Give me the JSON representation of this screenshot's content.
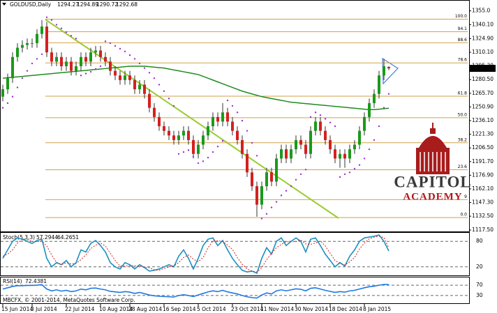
{
  "chart_data": [
    {
      "type": "candlestick",
      "title": "GOLDUSD,Daily",
      "categories": [
        "15 Jun 2014",
        null,
        null,
        null,
        null,
        null,
        "3 Jul 2014",
        null,
        null,
        null,
        null,
        null,
        null,
        "22 Jul 2014",
        null,
        null,
        null,
        null,
        null,
        null,
        "10 Aug 2014",
        null,
        null,
        null,
        null,
        null,
        "28 Aug 2014",
        null,
        null,
        null,
        null,
        null,
        null,
        "16 Sep 2014",
        null,
        null,
        null,
        null,
        null,
        null,
        "5 Oct 2014",
        null,
        null,
        null,
        null,
        null,
        null,
        "23 Oct 2014",
        null,
        null,
        null,
        null,
        null,
        "11 Nov 2014",
        null,
        null,
        null,
        null,
        null,
        null,
        "30 Nov 2014",
        null,
        null,
        null,
        null,
        null,
        null,
        "18 Dec 2014",
        null,
        null,
        null,
        null,
        null,
        null,
        "8 Jan 2015",
        null,
        null,
        null,
        null,
        null
      ],
      "open": [
        1262,
        1270,
        1282,
        1305,
        1315,
        1318,
        1320,
        1320,
        1330,
        1338,
        1310,
        1300,
        1305,
        1295,
        1300,
        1290,
        1295,
        1305,
        1300,
        1310,
        1312,
        1305,
        1300,
        1290,
        1285,
        1280,
        1285,
        1280,
        1270,
        1275,
        1265,
        1250,
        1240,
        1230,
        1225,
        1220,
        1215,
        1220,
        1225,
        1215,
        1200,
        1210,
        1220,
        1230,
        1240,
        1235,
        1245,
        1235,
        1225,
        1215,
        1200,
        1180,
        1165,
        1145,
        1165,
        1180,
        1170,
        1195,
        1205,
        1195,
        1205,
        1215,
        1210,
        1200,
        1225,
        1235,
        1225,
        1215,
        1205,
        1195,
        1200,
        1195,
        1205,
        1210,
        1225,
        1240,
        1255,
        1265,
        1285,
        1294.27
      ],
      "high": [
        1275,
        1287,
        1310,
        1320,
        1323,
        1325,
        1325,
        1335,
        1345,
        1343,
        1315,
        1310,
        1310,
        1305,
        1305,
        1300,
        1310,
        1310,
        1315,
        1317,
        1317,
        1310,
        1305,
        1295,
        1290,
        1290,
        1290,
        1285,
        1280,
        1280,
        1270,
        1255,
        1245,
        1235,
        1230,
        1225,
        1225,
        1230,
        1230,
        1220,
        1215,
        1225,
        1235,
        1245,
        1245,
        1255,
        1250,
        1240,
        1230,
        1220,
        1205,
        1185,
        1170,
        1170,
        1185,
        1185,
        1200,
        1210,
        1210,
        1210,
        1220,
        1220,
        1215,
        1230,
        1240,
        1240,
        1230,
        1220,
        1210,
        1205,
        1205,
        1210,
        1215,
        1230,
        1245,
        1260,
        1270,
        1290,
        1303,
        1294.89
      ],
      "low": [
        1257,
        1265,
        1277,
        1300,
        1310,
        1313,
        1315,
        1315,
        1325,
        1305,
        1295,
        1295,
        1290,
        1290,
        1285,
        1285,
        1290,
        1295,
        1295,
        1305,
        1300,
        1295,
        1285,
        1280,
        1275,
        1275,
        1275,
        1265,
        1265,
        1260,
        1245,
        1235,
        1225,
        1220,
        1215,
        1210,
        1210,
        1215,
        1210,
        1195,
        1195,
        1205,
        1215,
        1225,
        1230,
        1230,
        1230,
        1220,
        1210,
        1195,
        1175,
        1160,
        1132,
        1140,
        1160,
        1165,
        1165,
        1190,
        1190,
        1190,
        1200,
        1205,
        1195,
        1195,
        1220,
        1220,
        1210,
        1200,
        1190,
        1185,
        1185,
        1190,
        1200,
        1205,
        1220,
        1235,
        1250,
        1260,
        1280,
        1290.72
      ],
      "close": [
        1270,
        1282,
        1305,
        1315,
        1318,
        1320,
        1320,
        1330,
        1338,
        1310,
        1300,
        1305,
        1295,
        1300,
        1290,
        1295,
        1305,
        1300,
        1310,
        1312,
        1305,
        1300,
        1290,
        1285,
        1280,
        1285,
        1280,
        1270,
        1275,
        1265,
        1250,
        1240,
        1230,
        1225,
        1220,
        1215,
        1220,
        1225,
        1215,
        1200,
        1210,
        1220,
        1230,
        1240,
        1235,
        1245,
        1235,
        1225,
        1215,
        1200,
        1180,
        1165,
        1145,
        1165,
        1180,
        1170,
        1195,
        1205,
        1195,
        1205,
        1215,
        1210,
        1200,
        1225,
        1235,
        1225,
        1215,
        1205,
        1195,
        1200,
        1195,
        1205,
        1210,
        1225,
        1240,
        1255,
        1265,
        1285,
        1295,
        1292.68
      ],
      "colors": {
        "up": "#1a9a1a",
        "down": "#d42020",
        "wick": "#333333",
        "last_price_box": "#000000"
      },
      "sma": {
        "color": "#1e8c1e",
        "values": [
          1282,
          1282.5,
          1283,
          1283.5,
          1284,
          1284.5,
          1285,
          1285.5,
          1286,
          1286.5,
          1287,
          1287.5,
          1288,
          1288.5,
          1289,
          1289.5,
          1290,
          1290.5,
          1291,
          1291.5,
          1292,
          1292.5,
          1293,
          1293.5,
          1294,
          1294.5,
          1295,
          1295,
          1295,
          1295,
          1294.5,
          1294,
          1293.5,
          1293,
          1292,
          1291,
          1290,
          1289,
          1288,
          1287,
          1286,
          1284,
          1282,
          1280,
          1278,
          1276,
          1274,
          1272,
          1270,
          1268,
          1266.5,
          1265,
          1263.5,
          1262,
          1261,
          1260,
          1259,
          1258,
          1257,
          1256,
          1255.5,
          1255,
          1254.5,
          1254,
          1253.5,
          1253,
          1252.5,
          1252,
          1251.5,
          1251,
          1250.5,
          1250,
          1249.5,
          1249,
          1248.5,
          1248,
          1248,
          1248.5,
          1249,
          1249.5
        ]
      },
      "sar": {
        "color": "#9b30d0",
        "values": [
          1250,
          1255,
          1262,
          1272,
          1282,
          1290,
          1298,
          1303,
          1308,
          1348,
          1345,
          1340,
          1336,
          1332,
          1328,
          1325,
          1285,
          1287,
          1289,
          1292,
          1295,
          1322,
          1320,
          1317,
          1314,
          1311,
          1307,
          1303,
          1298,
          1293,
          1288,
          1282,
          1275,
          1268,
          1260,
          1252,
          1200,
          1202,
          1204,
          1197,
          1190,
          1192,
          1196,
          1202,
          1208,
          1214,
          1258,
          1252,
          1245,
          1236,
          1225,
          1212,
          1198,
          1130,
          1135,
          1142,
          1148,
          1155,
          1160,
          1165,
          1172,
          1178,
          1183,
          1240,
          1245,
          1242,
          1238,
          1234,
          1230,
          1175,
          1178,
          1180,
          1184,
          1188,
          1195,
          1205,
          1215,
          1230,
          1250,
          1265
        ]
      },
      "fib_levels": {
        "color": "#d2a24a",
        "levels": [
          {
            "value": 1346.0,
            "label": "100.0"
          },
          {
            "value": 1332.4,
            "label": "94.1"
          },
          {
            "value": 1320.4,
            "label": "88.6"
          },
          {
            "value": 1298.6,
            "label": "78.6"
          },
          {
            "value": 1262.5,
            "label": "61.8"
          },
          {
            "value": 1239.2,
            "label": "50.0"
          },
          {
            "value": 1212.1,
            "label": "38.2"
          },
          {
            "value": 1182.8,
            "label": "23.6"
          },
          {
            "value": 1150.5,
            "label": "9"
          },
          {
            "value": 1131.0,
            "label": "0.0"
          }
        ]
      },
      "ylim": [
        1116,
        1366
      ],
      "yticks": [
        {
          "value": 1355.0,
          "label": "1355.0"
        },
        {
          "value": 1340.1,
          "label": "1340.10"
        },
        {
          "value": 1324.9,
          "label": "1324.90"
        },
        {
          "value": 1310.1,
          "label": "1310.10"
        },
        {
          "value": 1295.3,
          "label": "1295.30"
        },
        {
          "value": 1280.5,
          "label": "1280.50"
        },
        {
          "value": 1265.7,
          "label": "1265.70"
        },
        {
          "value": 1250.9,
          "label": "1250.90"
        },
        {
          "value": 1236.1,
          "label": "1236.10"
        },
        {
          "value": 1221.3,
          "label": "1221.30"
        },
        {
          "value": 1206.5,
          "label": "1206.50"
        },
        {
          "value": 1191.7,
          "label": "1191.70"
        },
        {
          "value": 1176.9,
          "label": "1176.90"
        },
        {
          "value": 1162.1,
          "label": "1162.10"
        },
        {
          "value": 1147.3,
          "label": "1147.30"
        },
        {
          "value": 1132.5,
          "label": "1132.50"
        },
        {
          "value": 1117.5,
          "label": "1117.50"
        }
      ]
    },
    {
      "type": "line",
      "title": "Stoch(5,3,3)",
      "series": [
        {
          "color": "#1a8fc0",
          "dash": false,
          "values": [
            40,
            60,
            80,
            88,
            85,
            80,
            75,
            82,
            85,
            40,
            20,
            30,
            25,
            35,
            20,
            30,
            60,
            55,
            75,
            82,
            70,
            55,
            30,
            20,
            15,
            30,
            25,
            15,
            25,
            18,
            10,
            12,
            15,
            20,
            25,
            20,
            45,
            60,
            40,
            15,
            40,
            70,
            85,
            88,
            70,
            82,
            60,
            40,
            25,
            12,
            8,
            10,
            5,
            40,
            65,
            50,
            80,
            88,
            70,
            80,
            88,
            80,
            55,
            85,
            88,
            70,
            50,
            35,
            20,
            30,
            22,
            45,
            60,
            80,
            88,
            90,
            92,
            95,
            80,
            57.2944
          ]
        },
        {
          "color": "#d42020",
          "dash": true,
          "values": [
            45,
            50,
            60,
            76,
            84,
            84,
            80,
            79,
            81,
            69,
            48,
            30,
            25,
            30,
            27,
            28,
            37,
            48,
            63,
            71,
            76,
            69,
            52,
            35,
            22,
            22,
            23,
            23,
            22,
            19,
            18,
            13,
            12,
            16,
            20,
            22,
            30,
            42,
            48,
            38,
            32,
            42,
            65,
            81,
            81,
            80,
            71,
            61,
            42,
            26,
            15,
            10,
            8,
            18,
            37,
            52,
            65,
            73,
            79,
            79,
            79,
            83,
            74,
            73,
            76,
            81,
            69,
            52,
            35,
            28,
            24,
            32,
            42,
            62,
            76,
            86,
            90,
            92,
            89,
            64.2651
          ]
        }
      ],
      "ylim": [
        0,
        100
      ],
      "yticks": [
        80,
        20
      ]
    },
    {
      "type": "line",
      "title": "RSI(14)",
      "series": [
        {
          "color": "#1e78e0",
          "dash": false,
          "values": [
            55,
            60,
            65,
            68,
            68,
            69,
            69,
            70,
            72,
            55,
            48,
            52,
            47,
            50,
            45,
            48,
            55,
            52,
            58,
            59,
            55,
            52,
            46,
            44,
            42,
            45,
            43,
            38,
            42,
            37,
            32,
            29,
            27,
            26,
            25,
            24,
            30,
            33,
            30,
            26,
            32,
            38,
            44,
            48,
            45,
            50,
            44,
            40,
            36,
            30,
            25,
            22,
            20,
            32,
            40,
            36,
            48,
            52,
            48,
            52,
            56,
            54,
            48,
            58,
            60,
            55,
            50,
            46,
            42,
            45,
            43,
            48,
            50,
            55,
            60,
            64,
            66,
            70,
            73,
            72.4381
          ]
        }
      ],
      "ylim": [
        0,
        100
      ],
      "yticks": [
        70,
        30
      ]
    }
  ],
  "logo": {
    "line1": "CAPITOL",
    "line2": "ACADEMY"
  },
  "footer": "MBCFX, © 2001-2014, MetaQuotes Software Corp."
}
